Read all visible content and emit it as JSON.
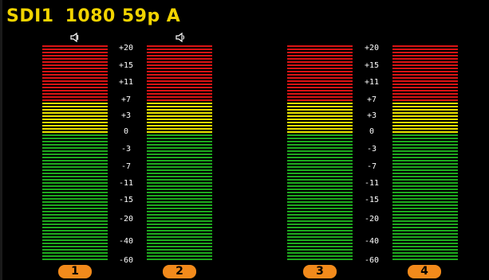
{
  "header": {
    "source": "SDI1",
    "format": "1080",
    "rate": "59p",
    "mode": "A"
  },
  "colors": {
    "text": "#f2d400",
    "red": "#d81414",
    "yellow": "#e8e000",
    "green": "#1ea81e",
    "badge": "#f28a1b"
  },
  "scale_labels": [
    "+20",
    "+15",
    "+11",
    "+7",
    "+3",
    "0",
    "-3",
    "-7",
    "-11",
    "-15",
    "-20",
    "-40",
    "-60"
  ],
  "channels": [
    {
      "label": "1",
      "speaker_icon": "speaker-muted-icon"
    },
    {
      "label": "2",
      "speaker_icon": "speaker-icon"
    },
    {
      "label": "3",
      "speaker_icon": ""
    },
    {
      "label": "4",
      "speaker_icon": ""
    }
  ]
}
